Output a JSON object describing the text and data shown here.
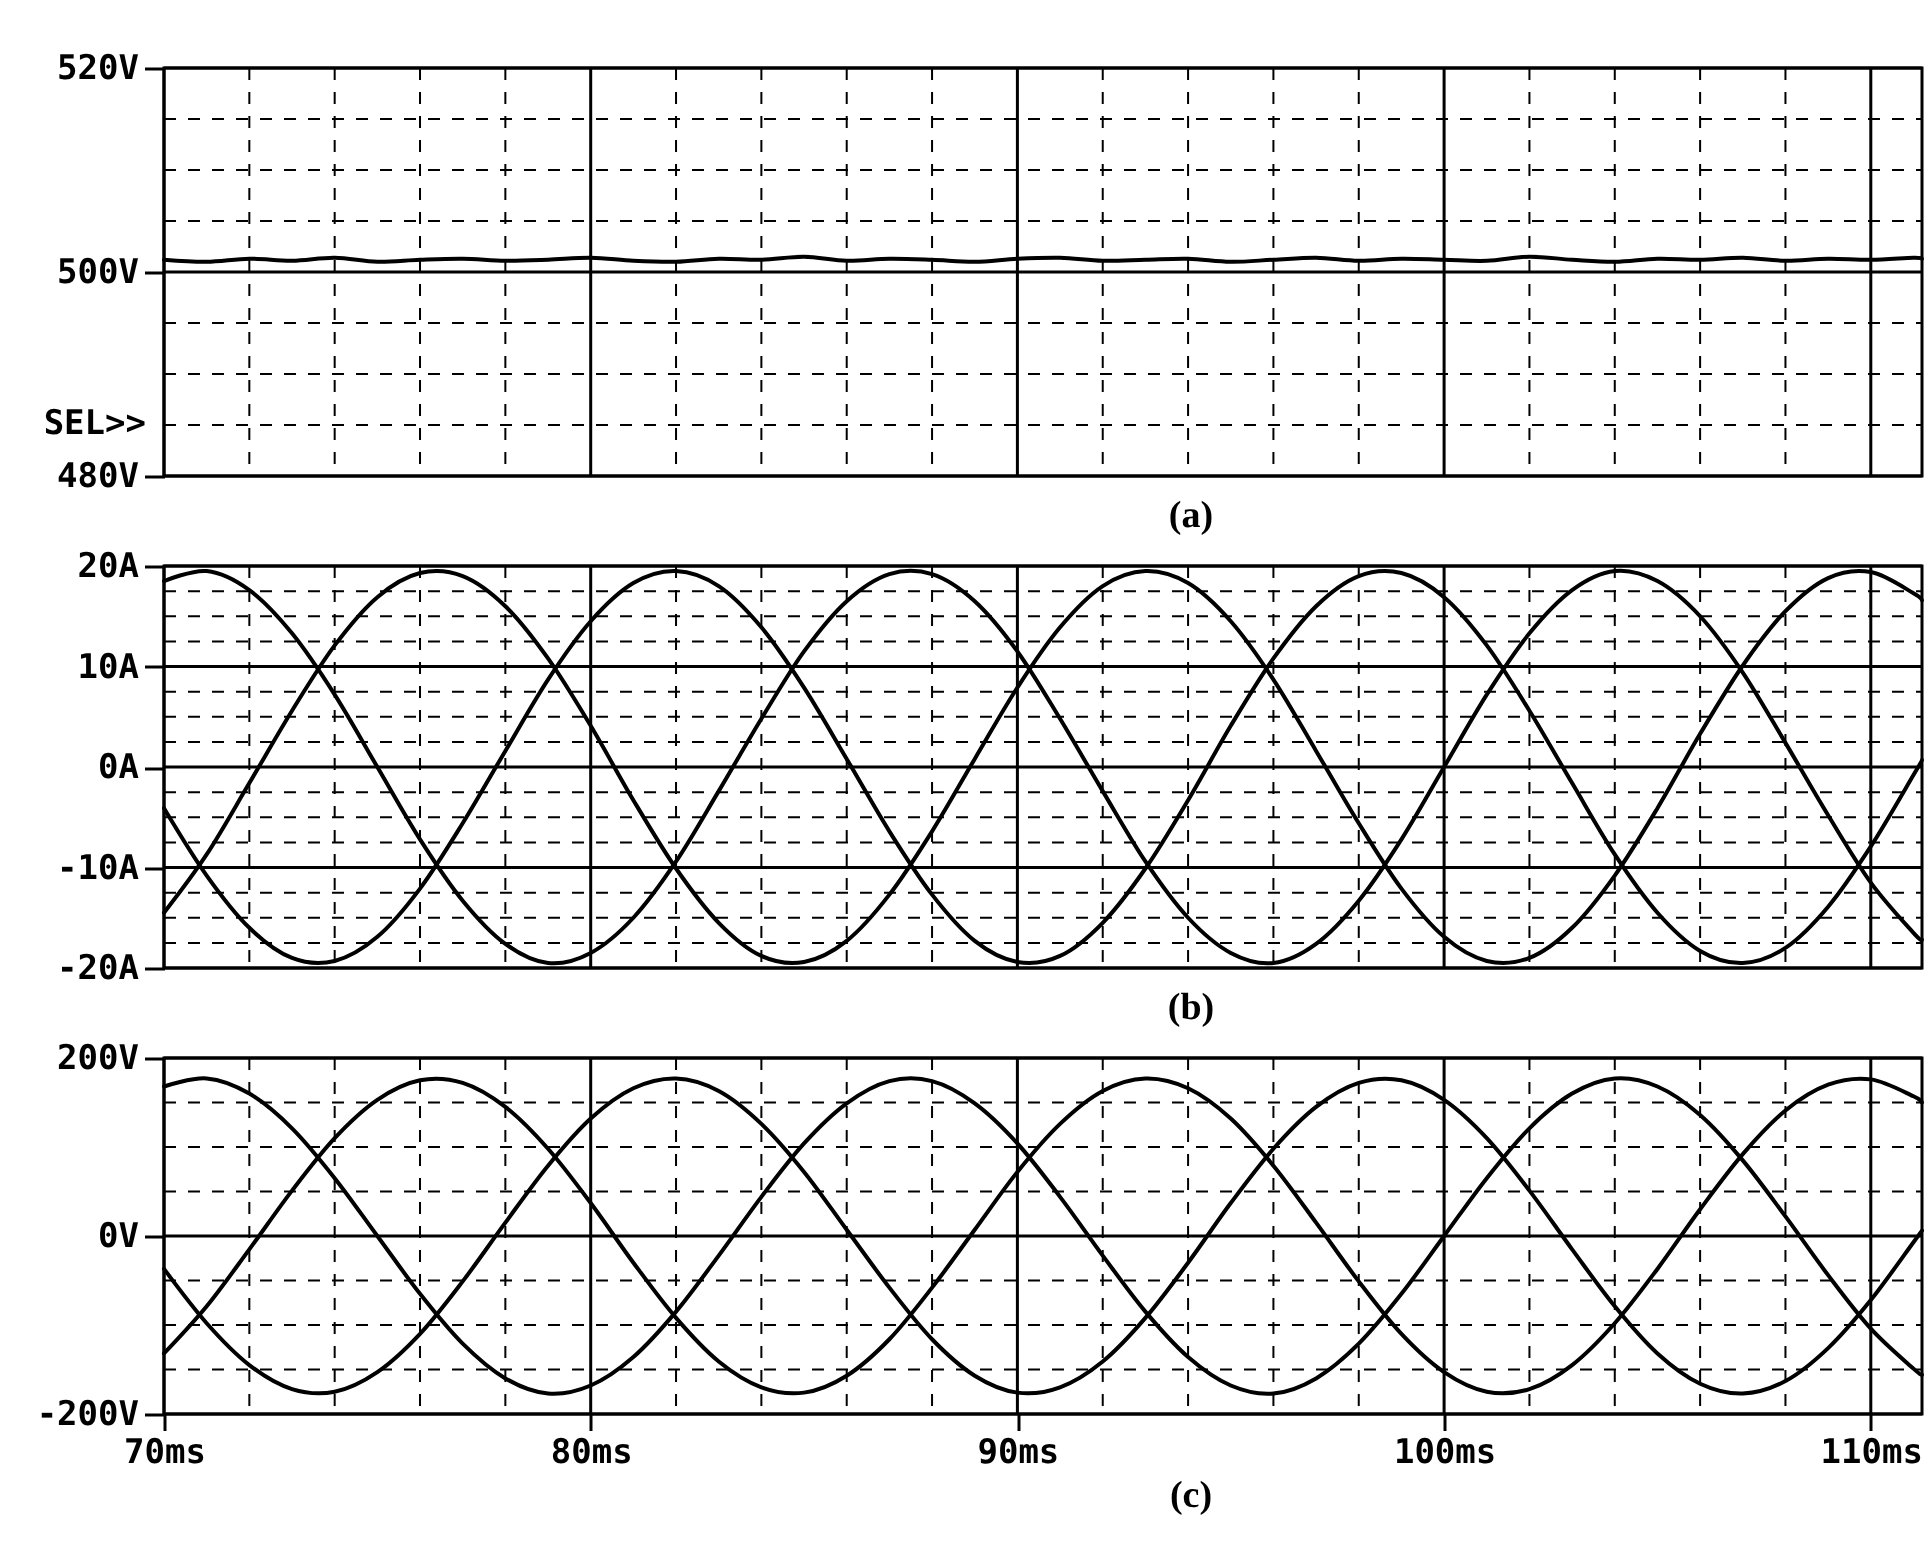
{
  "chart_data": [
    {
      "type": "line",
      "xlabel": "(a)",
      "annotations": [
        "SEL>>"
      ],
      "grid": true,
      "tick_labels": "y",
      "x": [
        70,
        71,
        72,
        73,
        74,
        75,
        76,
        77,
        78,
        79,
        80,
        81,
        82,
        83,
        84,
        85,
        86,
        87,
        88,
        89,
        90,
        91,
        92,
        93,
        94,
        95,
        96,
        97,
        98,
        99,
        100,
        101,
        102,
        103,
        104,
        105,
        106,
        107,
        108,
        109,
        110,
        111,
        111.2
      ],
      "xlim": [
        70,
        111.2
      ],
      "xticks": [
        70,
        {
          "value": 72,
          "label": null
        },
        {
          "value": 74,
          "label": null
        },
        {
          "value": 76,
          "label": null
        },
        {
          "value": 78,
          "label": null
        },
        80,
        {
          "value": 82,
          "label": null
        },
        {
          "value": 84,
          "label": null
        },
        {
          "value": 86,
          "label": null
        },
        {
          "value": 88,
          "label": null
        },
        90,
        {
          "value": 92,
          "label": null
        },
        {
          "value": 94,
          "label": null
        },
        {
          "value": 96,
          "label": null
        },
        {
          "value": 98,
          "label": null
        },
        100,
        {
          "value": 102,
          "label": null
        },
        {
          "value": 104,
          "label": null
        },
        {
          "value": 106,
          "label": null
        },
        {
          "value": 108,
          "label": null
        },
        110
      ],
      "ylim": [
        480,
        520
      ],
      "yticks": [
        {
          "value": 480,
          "label": "480V"
        },
        {
          "value": 485,
          "label": null
        },
        {
          "value": 490,
          "label": null
        },
        {
          "value": 495,
          "label": null
        },
        {
          "value": 500,
          "label": "500V"
        },
        {
          "value": 505,
          "label": null
        },
        {
          "value": 510,
          "label": null
        },
        {
          "value": 515,
          "label": null
        },
        {
          "value": 520,
          "label": "520V"
        }
      ],
      "series": [
        {
          "color": "#000000",
          "values": [
            501.2,
            501.0,
            501.3,
            501.1,
            501.4,
            501.0,
            501.2,
            501.3,
            501.1,
            501.2,
            501.4,
            501.1,
            501.0,
            501.3,
            501.2,
            501.5,
            501.1,
            501.3,
            501.2,
            501.0,
            501.3,
            501.4,
            501.1,
            501.2,
            501.3,
            501.0,
            501.2,
            501.4,
            501.1,
            501.3,
            501.2,
            501.1,
            501.5,
            501.2,
            501.0,
            501.3,
            501.2,
            501.4,
            501.1,
            501.3,
            501.2,
            501.4,
            501.3
          ]
        }
      ]
    },
    {
      "type": "line",
      "xlabel": "(b)",
      "grid": true,
      "tick_labels": "y",
      "x": [
        70,
        71,
        72,
        73,
        74,
        75,
        76,
        77,
        78,
        79,
        80,
        81,
        82,
        83,
        84,
        85,
        86,
        87,
        88,
        89,
        90,
        91,
        92,
        93,
        94,
        95,
        96,
        97,
        98,
        99,
        100,
        101,
        102,
        103,
        104,
        105,
        106,
        107,
        108,
        109,
        110,
        111,
        111.2
      ],
      "xlim": [
        70,
        111.2
      ],
      "xticks": [
        70,
        {
          "value": 72,
          "label": null
        },
        {
          "value": 74,
          "label": null
        },
        {
          "value": 76,
          "label": null
        },
        {
          "value": 78,
          "label": null
        },
        80,
        {
          "value": 82,
          "label": null
        },
        {
          "value": 84,
          "label": null
        },
        {
          "value": 86,
          "label": null
        },
        {
          "value": 88,
          "label": null
        },
        90,
        {
          "value": 92,
          "label": null
        },
        {
          "value": 94,
          "label": null
        },
        {
          "value": 96,
          "label": null
        },
        {
          "value": 98,
          "label": null
        },
        100,
        {
          "value": 102,
          "label": null
        },
        {
          "value": 104,
          "label": null
        },
        {
          "value": 106,
          "label": null
        },
        {
          "value": 108,
          "label": null
        },
        110
      ],
      "ylim": [
        -20,
        20
      ],
      "yticks": [
        {
          "value": -20,
          "label": "-20A"
        },
        {
          "value": -17.5,
          "label": null
        },
        {
          "value": -15,
          "label": null
        },
        {
          "value": -12.5,
          "label": null
        },
        {
          "value": -10,
          "label": "-10A"
        },
        {
          "value": -7.5,
          "label": null
        },
        {
          "value": -5,
          "label": null
        },
        {
          "value": -2.5,
          "label": null
        },
        {
          "value": 0,
          "label": "0A"
        },
        {
          "value": 2.5,
          "label": null
        },
        {
          "value": 5,
          "label": null
        },
        {
          "value": 7.5,
          "label": null
        },
        {
          "value": 10,
          "label": "10A"
        },
        {
          "value": 12.5,
          "label": null
        },
        {
          "value": 15,
          "label": null
        },
        {
          "value": 17.5,
          "label": null
        },
        {
          "value": 20,
          "label": "20A"
        }
      ],
      "series": [
        {
          "color": "#000000",
          "values": [
            18.5,
            19.5,
            17.6,
            13.3,
            7.2,
            0,
            -7.2,
            -13.3,
            -17.6,
            -19.5,
            -18.5,
            -15.0,
            -9.4,
            -2.4,
            4.8,
            11.5,
            16.5,
            19.2,
            19.2,
            16.5,
            11.5,
            4.8,
            -2.4,
            -9.4,
            -15.0,
            -18.5,
            -19.5,
            -17.6,
            -13.3,
            -7.2,
            0,
            7.2,
            13.3,
            17.6,
            19.5,
            18.5,
            15.0,
            9.4,
            2.4,
            -4.8,
            -11.5,
            -16.5,
            -17.2
          ]
        },
        {
          "color": "#000000",
          "values": [
            -14.5,
            -8.7,
            -1.6,
            5.6,
            12.1,
            16.9,
            19.3,
            19.0,
            16.0,
            10.8,
            4.1,
            -3.3,
            -10.1,
            -15.5,
            -18.8,
            -19.4,
            -17.3,
            -12.7,
            -6.4,
            0.8,
            7.9,
            13.9,
            18.0,
            19.5,
            18.3,
            14.5,
            8.7,
            1.6,
            -5.6,
            -12.1,
            -16.9,
            -19.3,
            -19.0,
            -16.0,
            -10.8,
            -4.1,
            3.3,
            10.1,
            15.5,
            18.8,
            19.4,
            17.3,
            16.6
          ]
        },
        {
          "color": "#000000",
          "values": [
            -4.1,
            -10.8,
            -16.0,
            -19.0,
            -19.3,
            -16.9,
            -12.1,
            -5.6,
            1.6,
            8.7,
            14.5,
            18.3,
            19.5,
            18.0,
            13.9,
            7.9,
            0.8,
            -6.4,
            -12.7,
            -17.3,
            -19.4,
            -18.8,
            -15.5,
            -10.1,
            -3.3,
            4.1,
            10.8,
            16.0,
            19.0,
            19.3,
            16.9,
            12.1,
            5.6,
            -1.6,
            -8.7,
            -14.5,
            -18.3,
            -19.5,
            -18.0,
            -13.9,
            -7.9,
            -0.8,
            0.7
          ]
        }
      ]
    },
    {
      "type": "line",
      "xlabel": "(c)",
      "grid": true,
      "x": [
        70,
        71,
        72,
        73,
        74,
        75,
        76,
        77,
        78,
        79,
        80,
        81,
        82,
        83,
        84,
        85,
        86,
        87,
        88,
        89,
        90,
        91,
        92,
        93,
        94,
        95,
        96,
        97,
        98,
        99,
        100,
        101,
        102,
        103,
        104,
        105,
        106,
        107,
        108,
        109,
        110,
        111,
        111.2
      ],
      "xlim": [
        70,
        111.2
      ],
      "xticks": [
        {
          "value": 70,
          "label": "70ms"
        },
        {
          "value": 72,
          "label": null
        },
        {
          "value": 74,
          "label": null
        },
        {
          "value": 76,
          "label": null
        },
        {
          "value": 78,
          "label": null
        },
        {
          "value": 80,
          "label": "80ms"
        },
        {
          "value": 82,
          "label": null
        },
        {
          "value": 84,
          "label": null
        },
        {
          "value": 86,
          "label": null
        },
        {
          "value": 88,
          "label": null
        },
        {
          "value": 90,
          "label": "90ms"
        },
        {
          "value": 92,
          "label": null
        },
        {
          "value": 94,
          "label": null
        },
        {
          "value": 96,
          "label": null
        },
        {
          "value": 98,
          "label": null
        },
        {
          "value": 100,
          "label": "100ms"
        },
        {
          "value": 102,
          "label": null
        },
        {
          "value": 104,
          "label": null
        },
        {
          "value": 106,
          "label": null
        },
        {
          "value": 108,
          "label": null
        },
        {
          "value": 110,
          "label": "110ms"
        }
      ],
      "ylim": [
        -200,
        200
      ],
      "yticks": [
        {
          "value": -200,
          "label": "-200V"
        },
        {
          "value": -150,
          "label": null
        },
        {
          "value": -100,
          "label": null
        },
        {
          "value": -50,
          "label": null
        },
        {
          "value": 0,
          "label": "0V"
        },
        {
          "value": 50,
          "label": null
        },
        {
          "value": 100,
          "label": null
        },
        {
          "value": 150,
          "label": null
        },
        {
          "value": 200,
          "label": "200V"
        }
      ],
      "series": [
        {
          "color": "#000000",
          "values": [
            168,
            177,
            160,
            121,
            65,
            0,
            -65,
            -121,
            -160,
            -177,
            -168,
            -136,
            -85,
            -22,
            44,
            104,
            149,
            174,
            174,
            149,
            104,
            44,
            -22,
            -85,
            -136,
            -168,
            -177,
            -160,
            -121,
            -65,
            0,
            65,
            121,
            160,
            177,
            168,
            136,
            85,
            22,
            -44,
            -104,
            -149,
            -156
          ]
        },
        {
          "color": "#000000",
          "values": [
            -132,
            -79,
            -15,
            51,
            110,
            153,
            175,
            172,
            145,
            98,
            37,
            -30,
            -92,
            -141,
            -170,
            -176,
            -157,
            -116,
            -58,
            7,
            72,
            126,
            163,
            177,
            166,
            132,
            79,
            15,
            -51,
            -110,
            -153,
            -175,
            -172,
            -145,
            -98,
            -37,
            30,
            92,
            141,
            170,
            176,
            157,
            150
          ]
        },
        {
          "color": "#000000",
          "values": [
            -37,
            -98,
            -145,
            -172,
            -175,
            -153,
            -110,
            -51,
            15,
            79,
            132,
            166,
            177,
            163,
            126,
            72,
            7,
            -58,
            -116,
            -157,
            -176,
            -170,
            -141,
            -92,
            -30,
            37,
            98,
            145,
            172,
            175,
            153,
            110,
            51,
            -15,
            -79,
            -132,
            -166,
            -177,
            -163,
            -126,
            -72,
            -7,
            6
          ]
        }
      ]
    }
  ]
}
